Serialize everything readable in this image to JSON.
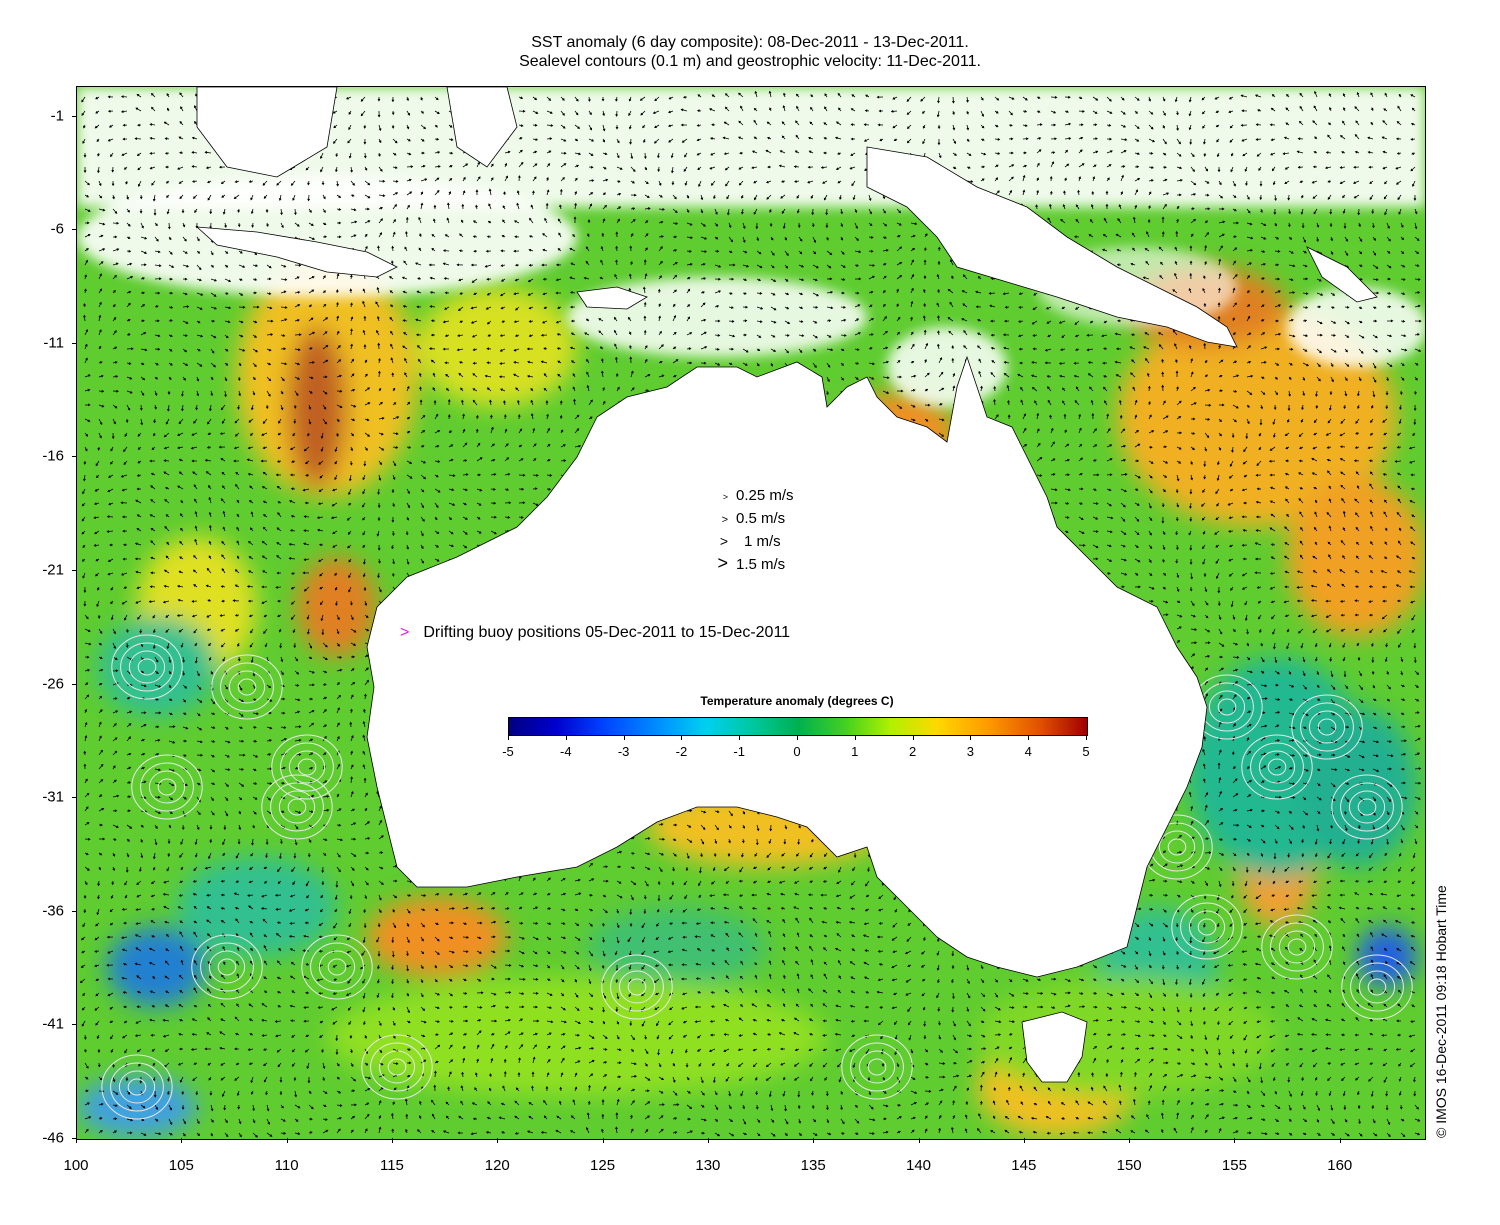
{
  "title": {
    "line1": "SST anomaly (6 day composite): 08-Dec-2011 - 13-Dec-2011.",
    "line2": "Sealevel contours (0.1 m) and geostrophic velocity: 11-Dec-2011."
  },
  "axes": {
    "x_ticks": [
      "100",
      "105",
      "110",
      "115",
      "120",
      "125",
      "130",
      "135",
      "140",
      "145",
      "150",
      "155",
      "160"
    ],
    "y_ticks": [
      "-1",
      "-6",
      "-11",
      "-16",
      "-21",
      "-26",
      "-31",
      "-36",
      "-41",
      "-46"
    ],
    "x_range": [
      100,
      164
    ],
    "y_range": [
      -46,
      0.3
    ]
  },
  "velocity_legend": [
    {
      "label": "0.25 m/s",
      "speed": 0.25
    },
    {
      "label": "0.5 m/s",
      "speed": 0.5
    },
    {
      "label": "1 m/s",
      "speed": 1
    },
    {
      "label": "1.5 m/s",
      "speed": 1.5
    }
  ],
  "buoy_legend": {
    "label": "Drifting buoy positions 05-Dec-2011 to 15-Dec-2011",
    "marker": ">",
    "color": "#e020e0"
  },
  "colorbar": {
    "title": "Temperature anomaly (degrees C)",
    "ticks": [
      "-5",
      "-4",
      "-3",
      "-2",
      "-1",
      "0",
      "1",
      "2",
      "3",
      "4",
      "5"
    ],
    "range": [
      -5,
      5
    ]
  },
  "copyright": "© IMOS 16-Dec-2011 09:18 Hobart Time",
  "colors": {
    "land": "#ffffff",
    "ocean_base": "#5fcc30",
    "warm_anomaly": "#f0a020",
    "strong_warm": "#c05010",
    "cool_anomaly": "#20b890",
    "cold_anomaly": "#1060e0",
    "contour": "#e8e8e8",
    "buoy": "#e020e0"
  }
}
